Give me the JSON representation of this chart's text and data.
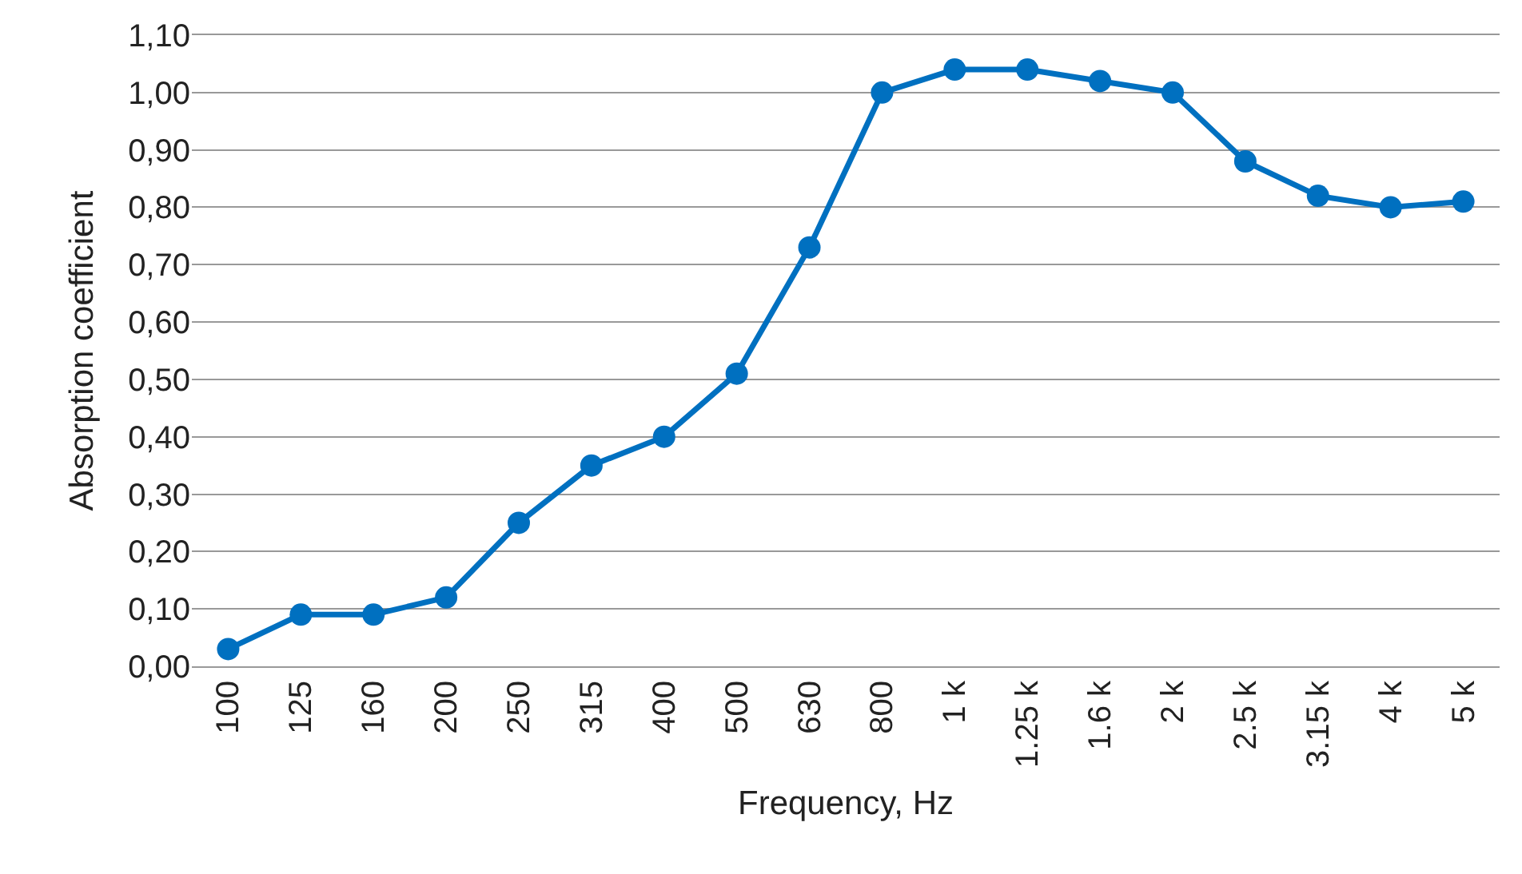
{
  "chart_data": {
    "type": "line",
    "xlabel": "Frequency, Hz",
    "ylabel": "Absorption coefficient",
    "categories": [
      "100",
      "125",
      "160",
      "200",
      "250",
      "315",
      "400",
      "500",
      "630",
      "800",
      "1 k",
      "1.25 k",
      "1.6 k",
      "2 k",
      "2.5 k",
      "3.15 k",
      "4 k",
      "5 k"
    ],
    "series": [
      {
        "color": "#0070c0",
        "values": [
          0.03,
          0.09,
          0.09,
          0.12,
          0.25,
          0.35,
          0.4,
          0.51,
          0.73,
          1.0,
          1.04,
          1.04,
          1.02,
          1.0,
          0.88,
          0.82,
          0.8,
          0.81
        ]
      }
    ],
    "ylim": [
      0,
      1.1
    ],
    "yticks": [
      {
        "value": 0,
        "label": "0,00"
      },
      {
        "value": 0.1,
        "label": "0,10"
      },
      {
        "value": 0.2,
        "label": "0,20"
      },
      {
        "value": 0.3,
        "label": "0,30"
      },
      {
        "value": 0.4,
        "label": "0,40"
      },
      {
        "value": 0.5,
        "label": "0,50"
      },
      {
        "value": 0.6,
        "label": "0,60"
      },
      {
        "value": 0.7,
        "label": "0,70"
      },
      {
        "value": 0.8,
        "label": "0,80"
      },
      {
        "value": 0.9,
        "label": "0,90"
      },
      {
        "value": 1.0,
        "label": "1,00"
      },
      {
        "value": 1.1,
        "label": "1,10"
      }
    ],
    "grid": "y",
    "marker": "circle",
    "line_style": "solid"
  }
}
